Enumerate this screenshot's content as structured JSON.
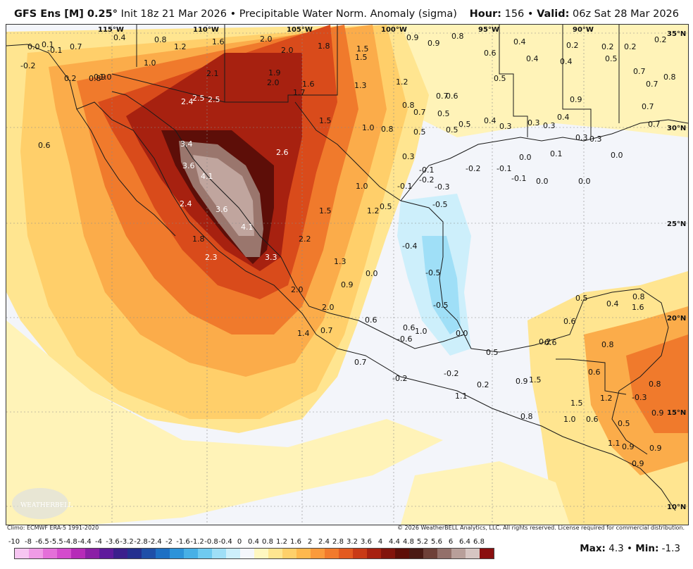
{
  "header": {
    "model": "GFS Ens [M] 0.25",
    "init": "Init 18z 21 Mar 2026",
    "separator": "•",
    "product": "Precipitable Water Norm. Anomaly (sigma)",
    "hour_label": "Hour:",
    "hour_value": "156",
    "valid_label": "Valid:",
    "valid_value": "06z Sat 28 Mar 2026"
  },
  "map": {
    "lon_ticks": [
      "115°W",
      "110°W",
      "105°W",
      "100°W",
      "95°W",
      "90°W"
    ],
    "lat_ticks": [
      "35°N",
      "30°N",
      "25°N",
      "20°N",
      "15°N",
      "10°N"
    ],
    "logo_text": "WEATHERBELL",
    "value_labels": [
      "0.0",
      "0.1",
      "-0.1",
      "0.7",
      "-0.2",
      "0.4",
      "0.8",
      "1.2",
      "1.6",
      "2.0",
      "2.0",
      "1.8",
      "1.5",
      "1.5",
      "0.9",
      "0.9",
      "0.8",
      "0.6",
      "0.4",
      "0.4",
      "0.2",
      "0.2",
      "0.2",
      "0.2",
      "0.4",
      "0.5",
      "0.7",
      "0.8",
      "0.7",
      "1.0",
      "1.0",
      "2.1",
      "1.9",
      "2.0",
      "1.6",
      "1.7",
      "1.3",
      "1.2",
      "0.8",
      "0.7",
      "0.7",
      "0.6",
      "0.5",
      "0.2",
      "0.8",
      "0.9",
      "0.5",
      "2.4",
      "2.5",
      "2.5",
      "0.9",
      "0.7",
      "0.7",
      "1.5",
      "1.0",
      "0.8",
      "0.5",
      "0.5",
      "0.5",
      "0.4",
      "0.3",
      "0.3",
      "0.3",
      "0.4",
      "0.3",
      "0.3",
      "0.6",
      "3.4",
      "2.6",
      "0.3",
      "0.0",
      "0.1",
      "0.0",
      "3.6",
      "-0.1",
      "-0.2",
      "-0.1",
      "-0.2",
      "-0.1",
      "0.0",
      "0.0",
      "4.1",
      "-0.3",
      "-0.1",
      "2.4",
      "1.0",
      "3.6",
      "1.5",
      "1.2",
      "0.5",
      "-0.5",
      "4.1",
      "1.8",
      "2.2",
      "-0.4",
      "2.3",
      "3.3",
      "1.3",
      "0.0",
      "-0.5",
      "0.9",
      "2.0",
      "-0.5",
      "2.0",
      "0.5",
      "0.4",
      "0.8",
      "1.6",
      "1.4",
      "0.7",
      "0.6",
      "0.6",
      "1.0",
      "-0.6",
      "0.0",
      "0.5",
      "0.6",
      "0.2",
      "0.8",
      "0.7",
      "0.6",
      "-0.2",
      "-0.2",
      "0.2",
      "1.1",
      "0.9",
      "1.5",
      "0.6",
      "0.8",
      "1.5",
      "1.2",
      "-0.3",
      "0.9",
      "0.8",
      "1.0",
      "0.6",
      "0.5",
      "1.1",
      "0.9",
      "0.9",
      "0.9"
    ]
  },
  "footer": {
    "climo": "Climo: ECMWF ERA-5 1991-2020",
    "copyright": "© 2026 WeatherBELL Analytics, LLC. All rights reserved. License required for commercial distribution."
  },
  "colorbar": {
    "labels": [
      "-10",
      "-8",
      "-6.5",
      "-5.5",
      "-4.8",
      "-4.4",
      "-4",
      "-3.6",
      "-3.2",
      "-2.8",
      "-2.4",
      "-2",
      "-1.6",
      "-1.2",
      "-0.8",
      "-0.4",
      "0",
      "0.4",
      "0.8",
      "1.2",
      "1.6",
      "2",
      "2.4",
      "2.8",
      "3.2",
      "3.6",
      "4",
      "4.4",
      "4.8",
      "5.2",
      "5.6",
      "6",
      "6.4",
      "6.8"
    ],
    "colors": [
      "#f7c6f2",
      "#ef9be6",
      "#e46fd9",
      "#d44bcd",
      "#b62bb8",
      "#8b1fa6",
      "#5f1a9c",
      "#3b1f8c",
      "#24308f",
      "#1f4fa8",
      "#1e70c4",
      "#2c93d9",
      "#47b0e6",
      "#6fcaf0",
      "#9fdff7",
      "#cdeffb",
      "#f4f6fb",
      "#fff7c0",
      "#ffe590",
      "#ffd06a",
      "#ffb84d",
      "#fb9a3b",
      "#f27a2c",
      "#e35a20",
      "#c93a16",
      "#a72110",
      "#82140c",
      "#5d0e08",
      "#4a1a14",
      "#6e4038",
      "#93706a",
      "#b89f9a",
      "#d6c5c2",
      "#8a0f0f"
    ]
  },
  "stats": {
    "max_label": "Max:",
    "max_value": "4.3",
    "min_label": "Min:",
    "min_value": "-1.3"
  }
}
